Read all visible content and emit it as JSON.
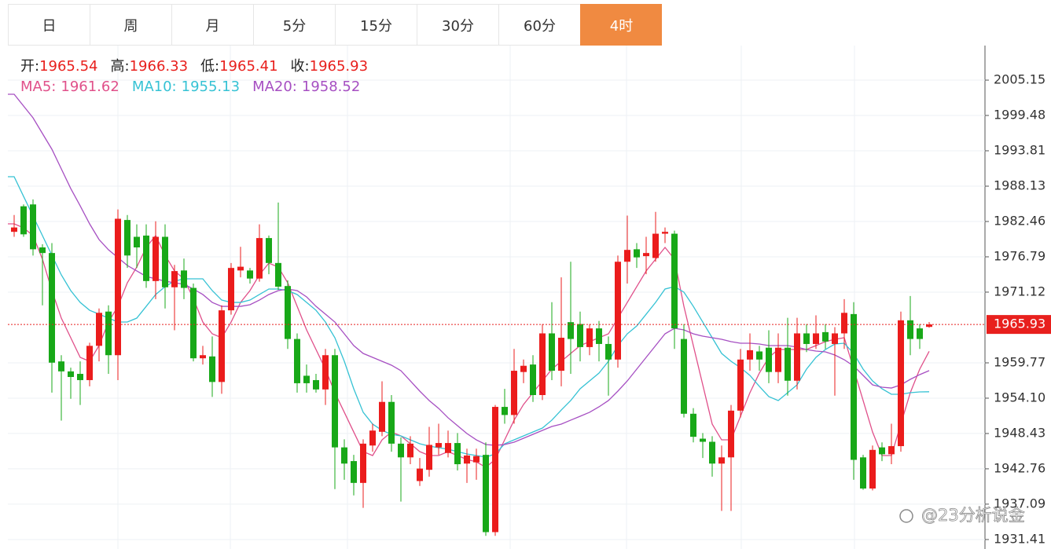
{
  "tabs": {
    "items": [
      "日",
      "周",
      "月",
      "5分",
      "15分",
      "30分",
      "60分",
      "4时"
    ],
    "active": 7
  },
  "chart_data": {
    "type": "candlestick",
    "ohlc_labels": [
      "开:",
      "高:",
      "低:",
      "收:"
    ],
    "up_color": "#eb1c1c",
    "down_color": "#18a818",
    "open": [
      1980.8,
      1984.9,
      1985.2,
      1978.3,
      1977.4,
      1960,
      1958.4,
      1958,
      1957,
      1962.5,
      1968,
      1961,
      1982.7,
      1980,
      1980.2,
      1972.9,
      1980,
      1971.9,
      1974.6,
      1971.8,
      1960.5,
      1960.8,
      1956.7,
      1968.2,
      1974.6,
      1974.6,
      1973.3,
      1979.8,
      1975.8,
      1972.1,
      1963.6,
      1957.7,
      1957,
      1955.5,
      1961,
      1946.2,
      1944,
      1940.5,
      1946.5,
      1948.7,
      1953.5,
      1946.8,
      1944.6,
      1940.8,
      1942.6,
      1946.2,
      1945.3,
      1946.9,
      1943.6,
      1943.8,
      1945,
      1932.6,
      1952.7,
      1951.4,
      1958.3,
      1959.5,
      1954.6,
      1964.5,
      1958.5,
      1966.3,
      1966,
      1962.3,
      1965.3,
      1962.8,
      1960.3,
      1976,
      1978,
      1976.9,
      1976.6,
      1980.5,
      1980.5,
      1963.6,
      1951.6,
      1947.6,
      1947.1,
      1943.6,
      1944.6,
      1952.1,
      1960.3,
      1961.6,
      1962.2,
      1958.3,
      1962.2,
      1956.9,
      1964.5,
      1962.8,
      1964.7,
      1962.8,
      1964.5,
      1967.6,
      1944.6,
      1939.6,
      1946.2,
      1945.1,
      1946.4,
      1966.6,
      1965.3,
      1965.54
    ],
    "high": [
      1983.5,
      1985.2,
      1986,
      1978.8,
      1979,
      1961,
      1959,
      1960,
      1963,
      1968.5,
      1969,
      1984.4,
      1983.5,
      1982,
      1982,
      1982.5,
      1982,
      1975.5,
      1976.5,
      1972.5,
      1962.5,
      1964,
      1969,
      1975.8,
      1978.4,
      1975,
      1982,
      1980.2,
      1985.5,
      1973,
      1964.5,
      1959.5,
      1958,
      1962,
      1962,
      1947.5,
      1945,
      1947.5,
      1950,
      1956.8,
      1954.6,
      1947.8,
      1948,
      1944.5,
      1949.5,
      1950,
      1948.9,
      1948.5,
      1946,
      1946,
      1947,
      1953,
      1955.6,
      1962,
      1960.3,
      1961,
      1966,
      1969.5,
      1973.5,
      1976,
      1968,
      1966,
      1966.5,
      1964,
      1977,
      1983.4,
      1979,
      1980,
      1984,
      1981.5,
      1981,
      1966,
      1952.5,
      1948.5,
      1948,
      1946.5,
      1953,
      1962,
      1964.5,
      1962.5,
      1965,
      1964.5,
      1967,
      1967,
      1966,
      1967.4,
      1966,
      1965.5,
      1970,
      1969.5,
      1945,
      1946.5,
      1947,
      1950,
      1968,
      1970.5,
      1966,
      1966.33
    ],
    "low": [
      1980,
      1980,
      1977,
      1969,
      1955,
      1950.5,
      1954,
      1953,
      1956,
      1960,
      1958,
      1957,
      1975,
      1975,
      1971.8,
      1970,
      1968.5,
      1965,
      1970,
      1960,
      1959.5,
      1954.3,
      1954.8,
      1967.5,
      1973.5,
      1972.5,
      1972.8,
      1974,
      1971.5,
      1962,
      1955,
      1955,
      1955,
      1953,
      1939.5,
      1941,
      1938.5,
      1936.5,
      1945.5,
      1948,
      1945.5,
      1937.5,
      1943.5,
      1940,
      1941.5,
      1945,
      1944.6,
      1942.5,
      1940.5,
      1941,
      1932,
      1932,
      1950,
      1950,
      1956.5,
      1953.5,
      1953.8,
      1957,
      1956,
      1958,
      1960,
      1961,
      1960,
      1954.5,
      1959,
      1972.5,
      1975,
      1974,
      1976,
      1979,
      1962,
      1951,
      1947,
      1944.5,
      1941.5,
      1936,
      1936,
      1951,
      1958.5,
      1958.5,
      1956.5,
      1956.5,
      1954.5,
      1955.5,
      1961.5,
      1962,
      1962,
      1954.5,
      1962,
      1941,
      1939.4,
      1939.3,
      1944,
      1943.5,
      1945.5,
      1961,
      1962,
      1965.41
    ],
    "close": [
      1981.5,
      1980.4,
      1978.0,
      1977.4,
      1959.8,
      1958.4,
      1957.5,
      1957,
      1962.5,
      1967.8,
      1961,
      1982.9,
      1977,
      1978.3,
      1972.9,
      1980,
      1971.9,
      1974.5,
      1971.8,
      1960.5,
      1961,
      1956.7,
      1968.2,
      1975,
      1975.2,
      1973.3,
      1979.8,
      1975.8,
      1972,
      1963.6,
      1956.5,
      1956.5,
      1955.5,
      1961,
      1946.2,
      1943.6,
      1940.5,
      1946.8,
      1948.9,
      1953.5,
      1946.8,
      1944.6,
      1946.8,
      1942.8,
      1946.6,
      1946.9,
      1946.9,
      1943.5,
      1944.9,
      1944.8,
      1932.6,
      1952.7,
      1951.4,
      1958.5,
      1959.3,
      1954.6,
      1964.5,
      1958.5,
      1963.8,
      1963.6,
      1962.3,
      1965.3,
      1962.8,
      1960.3,
      1976,
      1977.9,
      1976.7,
      1977.4,
      1980.5,
      1980.8,
      1965.3,
      1951.6,
      1947.9,
      1947.1,
      1943.6,
      1944.6,
      1952.1,
      1960.3,
      1961.8,
      1960.3,
      1958.3,
      1962.2,
      1956.9,
      1964.5,
      1962.8,
      1964.5,
      1963.2,
      1964.5,
      1967.8,
      1944.2,
      1939.6,
      1945.8,
      1945.1,
      1946.4,
      1966.6,
      1963.6,
      1963.6,
      1965.93
    ],
    "ma": [
      {
        "label": "MA5:",
        "color": "#e0508a",
        "values": [
          1982.08,
          1981.45,
          1980.19,
          1976.41,
          1971.37,
          1966.95,
          1963.8,
          1960.65,
          1960.02,
          1962.54,
          1966.32,
          1968.84,
          1972.63,
          1975.15,
          1978.3,
          1980.19,
          1977.04,
          1974.52,
          1973.26,
          1970.1,
          1966.32,
          1964.43,
          1963.8,
          1966.32,
          1969.47,
          1971.37,
          1973.89,
          1975.78,
          1975.15,
          1972.63,
          1968.84,
          1965.06,
          1961.91,
          1958.76,
          1954.98,
          1951.83,
          1948.67,
          1945.52,
          1944.89,
          1947.41,
          1948.67,
          1948.04,
          1946.78,
          1945.52,
          1944.89,
          1944.89,
          1945.52,
          1944.89,
          1944.26,
          1943.88,
          1943.0,
          1944.26,
          1947.41,
          1950.57,
          1953.09,
          1954.98,
          1956.87,
          1958.76,
          1960.02,
          1961.28,
          1962.54,
          1963.17,
          1963.8,
          1964.43,
          1966.95,
          1969.47,
          1972.0,
          1974.52,
          1976.41,
          1978.3,
          1976.41,
          1968.84,
          1962.54,
          1956.24,
          1949.94,
          1947.41,
          1947.41,
          1951.2,
          1954.98,
          1958.13,
          1960.65,
          1961.91,
          1961.91,
          1961.91,
          1961.91,
          1962.54,
          1963.17,
          1963.55,
          1963.8,
          1958.76,
          1953.72,
          1948.67,
          1944.89,
          1944.89,
          1949.94,
          1954.98,
          1958.76,
          1961.62
        ]
      },
      {
        "label": "MA10:",
        "color": "#36c2d4",
        "values": [
          1989.65,
          1986.49,
          1983.34,
          1980.19,
          1977.04,
          1973.89,
          1971.37,
          1969.47,
          1968.21,
          1967.58,
          1966.95,
          1966.32,
          1966.32,
          1966.95,
          1968.84,
          1970.74,
          1972.0,
          1972.88,
          1973.26,
          1973.26,
          1973.26,
          1971.37,
          1969.85,
          1969.47,
          1969.47,
          1969.85,
          1970.74,
          1971.62,
          1971.62,
          1971.37,
          1970.74,
          1969.47,
          1968.21,
          1966.32,
          1963.8,
          1960.02,
          1955.61,
          1951.83,
          1949.94,
          1948.93,
          1948.3,
          1948.04,
          1947.41,
          1946.78,
          1946.4,
          1946.15,
          1945.9,
          1945.52,
          1945.14,
          1944.89,
          1944.64,
          1945.14,
          1946.78,
          1947.41,
          1948.04,
          1948.67,
          1949.3,
          1950.57,
          1952.2,
          1953.72,
          1955.61,
          1956.87,
          1958.13,
          1960.02,
          1962.54,
          1964.43,
          1965.69,
          1967.58,
          1969.47,
          1971.62,
          1972.0,
          1971.12,
          1968.84,
          1966.32,
          1963.8,
          1961.28,
          1960.02,
          1959.0,
          1957.75,
          1956.0,
          1954.35,
          1953.72,
          1954.98,
          1956.24,
          1958.76,
          1960.65,
          1961.91,
          1962.79,
          1962.92,
          1961.28,
          1958.76,
          1956.87,
          1955.61,
          1954.73,
          1954.73,
          1954.98,
          1955.1,
          1955.13
        ]
      },
      {
        "label": "MA20:",
        "color": "#a64fc2",
        "values": [
          2002.88,
          2000.99,
          1999.1,
          1996.58,
          1994.06,
          1990.91,
          1987.75,
          1984.98,
          1982.08,
          1979.56,
          1977.92,
          1976.66,
          1975.4,
          1974.52,
          1973.64,
          1973.26,
          1972.88,
          1972.63,
          1972.37,
          1971.62,
          1970.74,
          1969.47,
          1968.84,
          1968.84,
          1968.84,
          1969.1,
          1969.85,
          1970.74,
          1971.37,
          1971.62,
          1971.37,
          1970.36,
          1968.84,
          1967.58,
          1966.32,
          1964.43,
          1962.54,
          1961.28,
          1960.65,
          1960.02,
          1959.39,
          1958.51,
          1956.87,
          1955.23,
          1953.72,
          1952.46,
          1950.95,
          1949.69,
          1948.42,
          1947.41,
          1946.66,
          1946.53,
          1946.66,
          1947.04,
          1947.67,
          1948.3,
          1948.93,
          1949.56,
          1949.94,
          1950.57,
          1951.2,
          1951.83,
          1952.71,
          1953.72,
          1955.23,
          1956.87,
          1958.76,
          1960.65,
          1962.54,
          1964.43,
          1965.31,
          1965.06,
          1964.43,
          1964.05,
          1963.8,
          1963.55,
          1963.17,
          1962.92,
          1962.92,
          1962.79,
          1962.54,
          1962.54,
          1962.54,
          1962.29,
          1961.91,
          1961.66,
          1961.53,
          1961.03,
          1960.27,
          1959.26,
          1957.75,
          1956.24,
          1955.86,
          1955.73,
          1956.24,
          1957.12,
          1957.88,
          1958.52
        ]
      }
    ],
    "ylim": [
      1929.89,
      2010.7
    ],
    "yticks": [
      2005.15,
      1999.48,
      1993.81,
      1988.13,
      1982.46,
      1976.79,
      1971.12,
      1959.77,
      {
        "value": 1954.1,
        "label": "1954.10"
      },
      1948.43,
      1942.76,
      1937.09,
      1931.41
    ],
    "grid": true,
    "watermark": "@23分析说金"
  }
}
